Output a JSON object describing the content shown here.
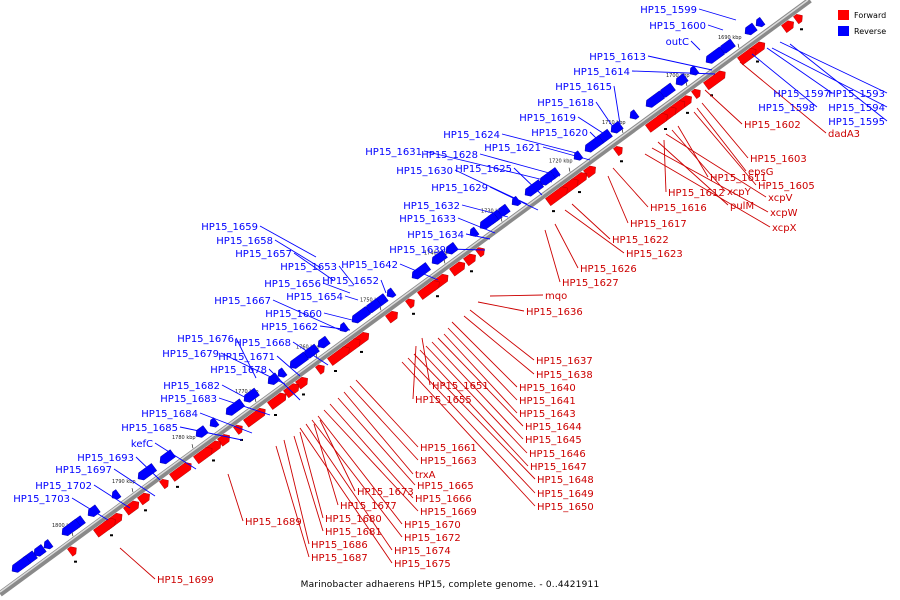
{
  "caption": "Marinobacter adhaerens HP15, complete genome. - 0..4421911",
  "legend": [
    {
      "label": "Forward",
      "color": "#ff0000"
    },
    {
      "label": "Reverse",
      "color": "#0000ff"
    }
  ],
  "ticks": [
    "1690 kbp",
    "1700 kbp",
    "1710 kbp",
    "1720 kbp",
    "1730 kbp",
    "1740 kbp",
    "1750 kbp",
    "1760 kbp",
    "1770 kbp",
    "1780 kbp",
    "1790 kbp",
    "1800 kbp"
  ],
  "reverse_genes": [
    "HP15_1593",
    "HP15_1597",
    "HP15_1594",
    "HP15_1598",
    "HP15_1595",
    "HP15_1599",
    "HP15_1600",
    "outC",
    "HP15_1613",
    "HP15_1614",
    "HP15_1615",
    "HP15_1618",
    "HP15_1619",
    "HP15_1620",
    "HP15_1624",
    "HP15_1621",
    "HP15_1631",
    "HP15_1628",
    "HP15_1625",
    "HP15_1630",
    "HP15_1629",
    "HP15_1632",
    "HP15_1633",
    "HP15_1634",
    "HP15_1639",
    "HP15_1659",
    "HP15_1658",
    "HP15_1657",
    "HP15_1653",
    "HP15_1642",
    "HP15_1656",
    "HP15_1652",
    "HP15_1654",
    "HP15_1667",
    "HP15_1660",
    "HP15_1662",
    "HP15_1668",
    "HP15_1676",
    "HP15_1679",
    "HP15_1671",
    "HP15_1678",
    "HP15_1682",
    "HP15_1683",
    "HP15_1684",
    "HP15_1685",
    "kefC",
    "HP15_1693",
    "HP15_1697",
    "HP15_1702",
    "HP15_1703"
  ],
  "forward_genes": [
    "dadA3",
    "HP15_1602",
    "HP15_1603",
    "epsG",
    "HP15_1605",
    "HP15_1611",
    "xcpY",
    "xcpV",
    "HP15_1612",
    "pulM",
    "xcpW",
    "xcpX",
    "HP15_1616",
    "HP15_1617",
    "HP15_1622",
    "HP15_1623",
    "HP15_1626",
    "HP15_1627",
    "mqo",
    "HP15_1636",
    "HP15_1637",
    "HP15_1638",
    "HP15_1640",
    "HP15_1641",
    "HP15_1651",
    "HP15_1655",
    "HP15_1643",
    "HP15_1644",
    "HP15_1645",
    "HP15_1646",
    "HP15_1647",
    "HP15_1648",
    "HP15_1649",
    "HP15_1650",
    "HP15_1661",
    "HP15_1663",
    "trxA",
    "HP15_1665",
    "HP15_1673",
    "HP15_1666",
    "HP15_1677",
    "HP15_1669",
    "HP15_1680",
    "HP15_1670",
    "HP15_1681",
    "HP15_1672",
    "HP15_1689",
    "HP15_1686",
    "HP15_1674",
    "HP15_1687",
    "HP15_1675",
    "HP15_1699"
  ]
}
